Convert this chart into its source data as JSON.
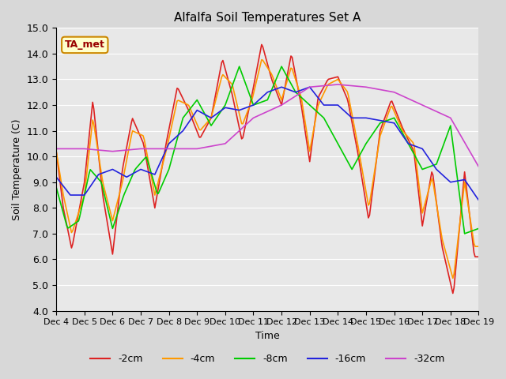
{
  "title": "Alfalfa Soil Temperatures Set A",
  "xlabel": "Time",
  "ylabel": "Soil Temperature (C)",
  "ylim": [
    4.0,
    15.0
  ],
  "yticks": [
    4.0,
    5.0,
    6.0,
    7.0,
    8.0,
    9.0,
    10.0,
    11.0,
    12.0,
    13.0,
    14.0,
    15.0
  ],
  "xtick_labels": [
    "Dec 4",
    "Dec 5",
    "Dec 6",
    "Dec 7",
    "Dec 8",
    "Dec 9",
    "Dec 10",
    "Dec 11",
    "Dec 12",
    "Dec 13",
    "Dec 14",
    "Dec 15",
    "Dec 16",
    "Dec 17",
    "Dec 18",
    "Dec 19"
  ],
  "annotation_text": "TA_met",
  "annotation_bg": "#ffffcc",
  "annotation_border": "#cc8800",
  "line_colors": [
    "#dd2222",
    "#ff9900",
    "#00cc00",
    "#2222dd",
    "#cc44cc"
  ],
  "line_labels": [
    "-2cm",
    "-4cm",
    "-8cm",
    "-16cm",
    "-32cm"
  ]
}
